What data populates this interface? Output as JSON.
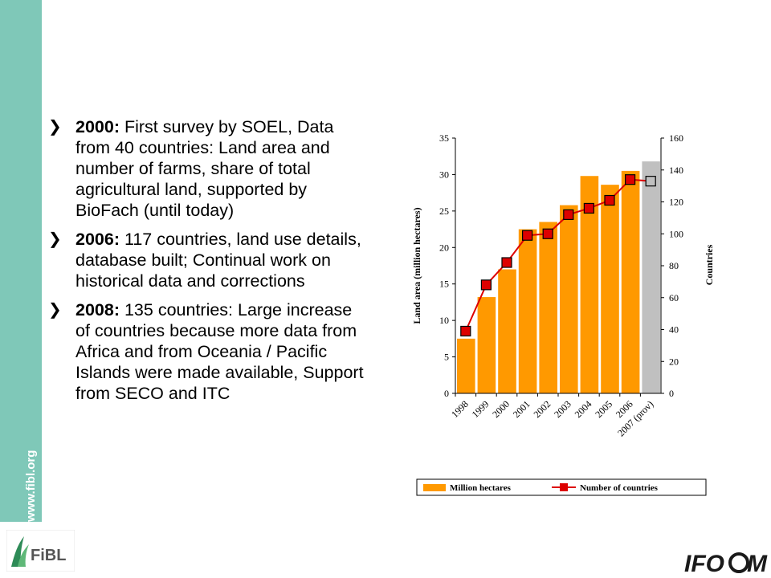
{
  "side": {
    "url": "www.fibl.org"
  },
  "bullets": [
    {
      "year": "2000:",
      "text": " First survey by SOEL, Data from 40 countries: Land area and number of farms, share of total agricultural land, supported by BioFach (until today)"
    },
    {
      "year": "2006:",
      "text": " 117 countries, land use details, database built; Continual work on historical data and corrections"
    },
    {
      "year": "2008:",
      "text": " 135 countries: Large increase of countries because more data from Africa and from Oceania / Pacific Islands were made available, Support from SECO and ITC"
    }
  ],
  "logos": {
    "fibl": "FiBL",
    "ifoam": "IFOAM"
  },
  "chart_data": {
    "type": "bar",
    "categories": [
      "1998",
      "1999",
      "2000",
      "2001",
      "2002",
      "2003",
      "2004",
      "2005",
      "2006",
      "2007 (prov)"
    ],
    "series": [
      {
        "name": "Million hectares",
        "kind": "bar",
        "axis": "left",
        "color": "#ff9900",
        "values": [
          7.5,
          13.2,
          17.0,
          22.5,
          23.5,
          25.8,
          29.8,
          28.6,
          30.5,
          31.8
        ]
      },
      {
        "name": "Number of countries",
        "kind": "line",
        "axis": "right",
        "color": "#dd0000",
        "values": [
          39,
          68,
          82,
          99,
          100,
          112,
          116,
          121,
          134,
          133
        ]
      }
    ],
    "last_bar_color": "#c0c0c0",
    "ylabel": "Land  area (million hectares)",
    "y2label": "Countries",
    "ylim": [
      0,
      35
    ],
    "yticks": [
      0,
      5,
      10,
      15,
      20,
      25,
      30,
      35
    ],
    "y2lim": [
      0,
      160
    ],
    "y2ticks": [
      0,
      20,
      40,
      60,
      80,
      100,
      120,
      140,
      160
    ],
    "legend": "bottom"
  }
}
